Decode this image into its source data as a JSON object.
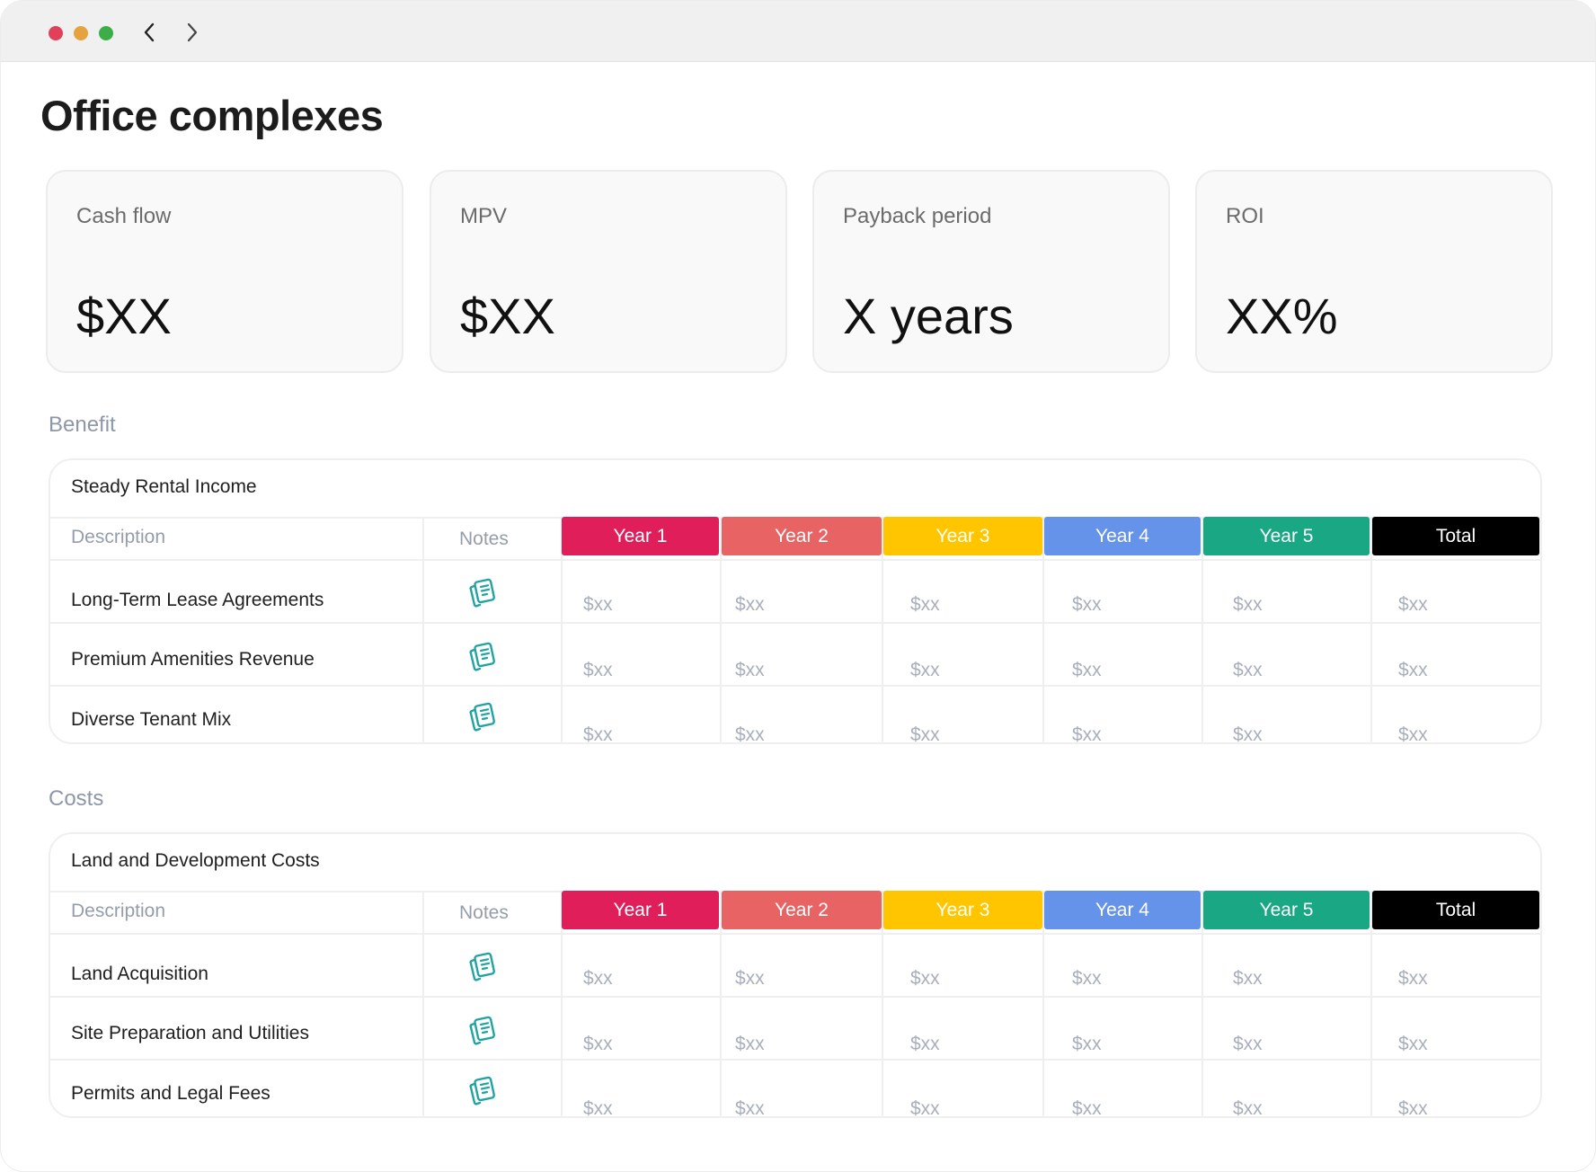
{
  "window": {
    "title": "Office complexes",
    "traffic_lights": [
      "close",
      "minimize",
      "maximize"
    ],
    "nav_icons": [
      "chevron-left-icon",
      "chevron-right-icon"
    ]
  },
  "kpis": [
    {
      "label": "Cash flow",
      "value": "$XX"
    },
    {
      "label": "MPV",
      "value": "$XX"
    },
    {
      "label": "Payback period",
      "value": "X years"
    },
    {
      "label": "ROI",
      "value": "XX%"
    }
  ],
  "year_colors": [
    "#e01e5a",
    "#e86464",
    "#ffc600",
    "#6693ea",
    "#1aa784",
    "#000000"
  ],
  "sections": [
    {
      "label": "Benefit",
      "table": {
        "title": "Steady Rental Income",
        "col_description": "Description",
        "col_notes": "Notes",
        "year_headers": [
          "Year 1",
          "Year 2",
          "Year 3",
          "Year 4",
          "Year 5",
          "Total"
        ],
        "rows": [
          {
            "label": "Long-Term Lease Agreements",
            "values": [
              "$xx",
              "$xx",
              "$xx",
              "$xx",
              "$xx",
              "$xx"
            ]
          },
          {
            "label": "Premium Amenities Revenue",
            "values": [
              "$xx",
              "$xx",
              "$xx",
              "$xx",
              "$xx",
              "$xx"
            ]
          },
          {
            "label": "Diverse Tenant Mix",
            "values": [
              "$xx",
              "$xx",
              "$xx",
              "$xx",
              "$xx",
              "$xx"
            ]
          }
        ]
      }
    },
    {
      "label": "Costs",
      "table": {
        "title": "Land and Development Costs",
        "col_description": "Description",
        "col_notes": "Notes",
        "year_headers": [
          "Year 1",
          "Year 2",
          "Year 3",
          "Year 4",
          "Year 5",
          "Total"
        ],
        "rows": [
          {
            "label": "Land Acquisition",
            "values": [
              "$xx",
              "$xx",
              "$xx",
              "$xx",
              "$xx",
              "$xx"
            ]
          },
          {
            "label": "Site Preparation and Utilities",
            "values": [
              "$xx",
              "$xx",
              "$xx",
              "$xx",
              "$xx",
              "$xx"
            ]
          },
          {
            "label": "Permits and Legal Fees",
            "values": [
              "$xx",
              "$xx",
              "$xx",
              "$xx",
              "$xx",
              "$xx"
            ]
          }
        ]
      }
    }
  ]
}
